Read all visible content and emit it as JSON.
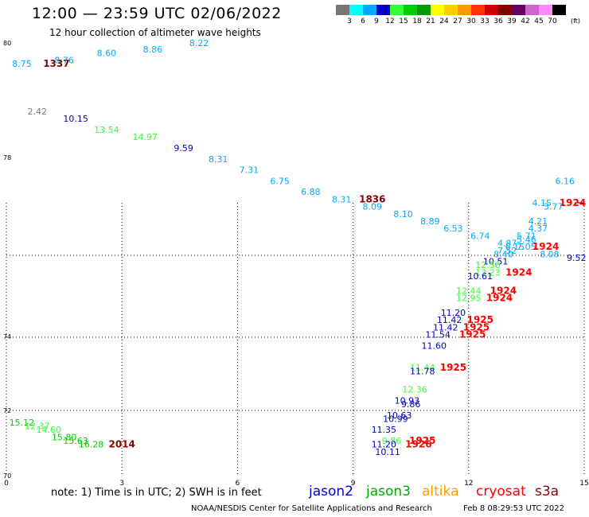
{
  "header": {
    "title": "12:00 — 23:59 UTC 02/06/2022",
    "subtitle": "12 hour collection of altimeter wave heights"
  },
  "colorbar": {
    "colors": [
      "#777777",
      "#00ffff",
      "#00aaff",
      "#0000cc",
      "#33ff33",
      "#00cc00",
      "#009900",
      "#ffff00",
      "#ffcc00",
      "#ff9900",
      "#ff3300",
      "#cc0000",
      "#880000",
      "#660066",
      "#cc66cc",
      "#ff88ff",
      "#000000"
    ],
    "labels": [
      "3",
      "6",
      "9",
      "12",
      "15",
      "18",
      "21",
      "24",
      "27",
      "30",
      "33",
      "36",
      "39",
      "42",
      "45",
      "70"
    ],
    "unit": "(ft)"
  },
  "footer": {
    "note": "note:  1) Time is in UTC;  2) SWH is in feet",
    "satellites": [
      {
        "name": "jason2",
        "color": "#0000cc"
      },
      {
        "name": "jason3",
        "color": "#00aa00"
      },
      {
        "name": "altika",
        "color": "#ff9900"
      },
      {
        "name": "cryosat",
        "color": "#ff0000"
      },
      {
        "name": "s3a",
        "color": "#880000"
      }
    ],
    "credit": "NOAA/NESDIS Center for Satellite Applications and Research",
    "timestamp": "Feb  8 08:29:53 UTC 2022"
  },
  "chart_data": {
    "type": "scatter",
    "xlim": [
      0,
      15
    ],
    "ylim": [
      70,
      80
    ],
    "x_ticks": [
      "0",
      "3",
      "6",
      "9",
      "12",
      "15"
    ],
    "y_ticks": [
      {
        "v": 80,
        "label": "80"
      },
      {
        "v": 78,
        "label": "78"
      },
      {
        "v": 74,
        "label": "74"
      },
      {
        "v": 72,
        "label": "72"
      },
      {
        "v": 70,
        "label": "70"
      }
    ],
    "grid": true,
    "labels": [
      {
        "x": 0.4,
        "y": 79.5,
        "text": "8.75",
        "color": "#00aaff"
      },
      {
        "x": 1.3,
        "y": 79.5,
        "text": "1337",
        "color": "#880000",
        "bold": true
      },
      {
        "x": 1.5,
        "y": 79.6,
        "text": "8.76",
        "color": "#00aaff"
      },
      {
        "x": 2.6,
        "y": 79.8,
        "text": "8.60",
        "color": "#00aaff"
      },
      {
        "x": 3.8,
        "y": 79.9,
        "text": "8.86",
        "color": "#00aaff"
      },
      {
        "x": 5.0,
        "y": 80.1,
        "text": "8.22",
        "color": "#00aaff"
      },
      {
        "x": 0.8,
        "y": 78.2,
        "text": "2.42",
        "color": "#777777"
      },
      {
        "x": 1.8,
        "y": 78.0,
        "text": "10.15",
        "color": "#0000cc"
      },
      {
        "x": 2.6,
        "y": 77.7,
        "text": "13.54",
        "color": "#33ff33"
      },
      {
        "x": 3.6,
        "y": 77.5,
        "text": "14.97",
        "color": "#33ff33"
      },
      {
        "x": 4.6,
        "y": 77.2,
        "text": "9.59",
        "color": "#0000cc"
      },
      {
        "x": 5.5,
        "y": 76.9,
        "text": "8.31",
        "color": "#00aaff"
      },
      {
        "x": 6.3,
        "y": 76.6,
        "text": "7.31",
        "color": "#00aaff"
      },
      {
        "x": 7.1,
        "y": 76.3,
        "text": "6.75",
        "color": "#00aaff"
      },
      {
        "x": 7.9,
        "y": 76.0,
        "text": "6.88",
        "color": "#00aaff"
      },
      {
        "x": 8.7,
        "y": 75.8,
        "text": "8.31",
        "color": "#00aaff"
      },
      {
        "x": 9.5,
        "y": 75.8,
        "text": "1836",
        "color": "#880000",
        "bold": true
      },
      {
        "x": 9.5,
        "y": 75.6,
        "text": "8.09",
        "color": "#00aaff"
      },
      {
        "x": 10.3,
        "y": 75.4,
        "text": "8.10",
        "color": "#00aaff"
      },
      {
        "x": 11.0,
        "y": 75.2,
        "text": "8.89",
        "color": "#00aaff"
      },
      {
        "x": 11.6,
        "y": 75.0,
        "text": "6.53",
        "color": "#00aaff"
      },
      {
        "x": 12.3,
        "y": 74.8,
        "text": "6.74",
        "color": "#00aaff"
      },
      {
        "x": 13.0,
        "y": 74.6,
        "text": "4.87",
        "color": "#00aaff"
      },
      {
        "x": 13.5,
        "y": 74.8,
        "text": "5.71",
        "color": "#00aaff"
      },
      {
        "x": 13.5,
        "y": 74.7,
        "text": "5.46",
        "color": "#00aaff"
      },
      {
        "x": 13.8,
        "y": 75.2,
        "text": "4.21",
        "color": "#00aaff"
      },
      {
        "x": 13.8,
        "y": 75.0,
        "text": "4.37",
        "color": "#00aaff"
      },
      {
        "x": 13.9,
        "y": 75.7,
        "text": "4.15",
        "color": "#00aaff"
      },
      {
        "x": 14.5,
        "y": 76.3,
        "text": "6.16",
        "color": "#00aaff"
      },
      {
        "x": 14.7,
        "y": 75.7,
        "text": "1924",
        "color": "#ff0000",
        "bold": true
      },
      {
        "x": 14.2,
        "y": 75.6,
        "text": "3.77",
        "color": "#00aaff"
      },
      {
        "x": 13.2,
        "y": 74.5,
        "text": "6.15",
        "color": "#00aaff"
      },
      {
        "x": 13.5,
        "y": 74.5,
        "text": "7.05",
        "color": "#00aaff"
      },
      {
        "x": 14.0,
        "y": 74.5,
        "text": "1924",
        "color": "#ff0000",
        "bold": true
      },
      {
        "x": 13.0,
        "y": 74.4,
        "text": "7.52",
        "color": "#00aaff"
      },
      {
        "x": 12.9,
        "y": 74.3,
        "text": "8.40",
        "color": "#00aaff"
      },
      {
        "x": 14.1,
        "y": 74.3,
        "text": "8.08",
        "color": "#00aaff"
      },
      {
        "x": 14.8,
        "y": 74.2,
        "text": "9.52",
        "color": "#0000cc"
      },
      {
        "x": 12.7,
        "y": 74.1,
        "text": "10.51",
        "color": "#0000cc"
      },
      {
        "x": 12.5,
        "y": 74.0,
        "text": "12.56",
        "color": "#33ff33"
      },
      {
        "x": 12.5,
        "y": 73.8,
        "text": "13.23",
        "color": "#33ff33"
      },
      {
        "x": 13.3,
        "y": 73.8,
        "text": "1924",
        "color": "#ff0000",
        "bold": true
      },
      {
        "x": 12.3,
        "y": 73.7,
        "text": "10.61",
        "color": "#0000cc"
      },
      {
        "x": 12.0,
        "y": 73.3,
        "text": "12.44",
        "color": "#33ff33"
      },
      {
        "x": 12.9,
        "y": 73.3,
        "text": "1924",
        "color": "#ff0000",
        "bold": true
      },
      {
        "x": 12.0,
        "y": 73.1,
        "text": "12.95",
        "color": "#33ff33"
      },
      {
        "x": 12.8,
        "y": 73.1,
        "text": "1924",
        "color": "#ff0000",
        "bold": true
      },
      {
        "x": 11.6,
        "y": 72.7,
        "text": "11.20",
        "color": "#0000cc"
      },
      {
        "x": 11.5,
        "y": 72.5,
        "text": "11.42",
        "color": "#0000cc"
      },
      {
        "x": 12.3,
        "y": 72.5,
        "text": "1925",
        "color": "#ff0000",
        "bold": true
      },
      {
        "x": 11.4,
        "y": 72.3,
        "text": "11.42",
        "color": "#0000cc"
      },
      {
        "x": 12.2,
        "y": 72.3,
        "text": "1925",
        "color": "#ff0000",
        "bold": true
      },
      {
        "x": 11.2,
        "y": 72.1,
        "text": "11.54",
        "color": "#0000cc"
      },
      {
        "x": 12.1,
        "y": 72.1,
        "text": "1925",
        "color": "#ff0000",
        "bold": true
      },
      {
        "x": 11.1,
        "y": 71.8,
        "text": "11.60",
        "color": "#0000cc"
      },
      {
        "x": 10.8,
        "y": 71.2,
        "text": "11.44",
        "color": "#33ff33"
      },
      {
        "x": 10.8,
        "y": 71.1,
        "text": "11.78",
        "color": "#0000cc"
      },
      {
        "x": 11.6,
        "y": 71.2,
        "text": "1925",
        "color": "#ff0000",
        "bold": true
      },
      {
        "x": 10.6,
        "y": 70.6,
        "text": "12.36",
        "color": "#33ff33"
      },
      {
        "x": 10.4,
        "y": 70.3,
        "text": "10.93",
        "color": "#0000cc"
      },
      {
        "x": 10.5,
        "y": 70.2,
        "text": "9.86",
        "color": "#0000cc"
      },
      {
        "x": 10.2,
        "y": 69.9,
        "text": "10.63",
        "color": "#0000cc"
      },
      {
        "x": 10.1,
        "y": 69.8,
        "text": "10.99",
        "color": "#0000cc"
      },
      {
        "x": 9.8,
        "y": 69.5,
        "text": "11.35",
        "color": "#0000cc"
      },
      {
        "x": 10.0,
        "y": 69.2,
        "text": "9.86",
        "color": "#33ff33"
      },
      {
        "x": 10.8,
        "y": 69.2,
        "text": "1925",
        "color": "#ff0000",
        "bold": true
      },
      {
        "x": 9.8,
        "y": 69.1,
        "text": "11.20",
        "color": "#0000cc"
      },
      {
        "x": 10.7,
        "y": 69.1,
        "text": "1926",
        "color": "#ff0000",
        "bold": true
      },
      {
        "x": 9.9,
        "y": 68.9,
        "text": "10.11",
        "color": "#0000cc"
      },
      {
        "x": 0.4,
        "y": 69.7,
        "text": "15.12",
        "color": "#00cc00"
      },
      {
        "x": 0.8,
        "y": 69.6,
        "text": "12.37",
        "color": "#33ff33"
      },
      {
        "x": 1.1,
        "y": 69.5,
        "text": "14.60",
        "color": "#33ff33"
      },
      {
        "x": 1.5,
        "y": 69.3,
        "text": "15.80",
        "color": "#00cc00"
      },
      {
        "x": 1.8,
        "y": 69.2,
        "text": "15.63",
        "color": "#00cc00"
      },
      {
        "x": 2.2,
        "y": 69.1,
        "text": "16.28",
        "color": "#00cc00"
      },
      {
        "x": 3.0,
        "y": 69.1,
        "text": "2014",
        "color": "#880000",
        "bold": true
      }
    ]
  }
}
